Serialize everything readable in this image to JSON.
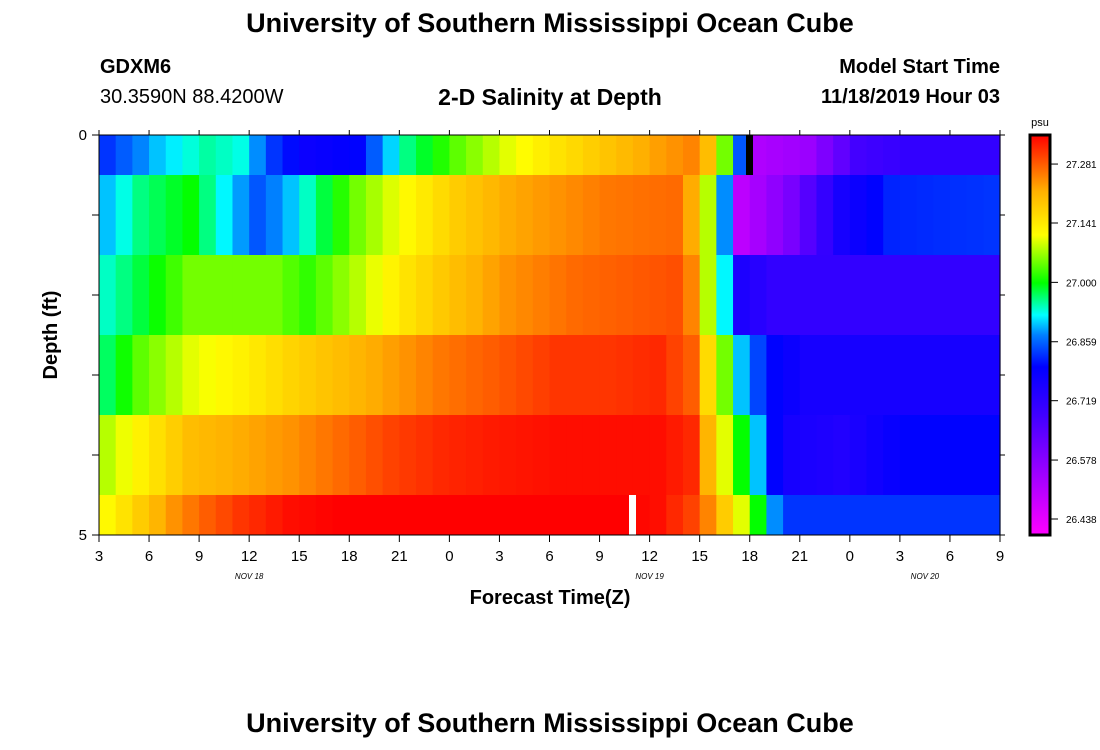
{
  "header": {
    "title": "University of Southern Mississippi Ocean Cube",
    "station": "GDXM6",
    "coordinates": "30.3590N 88.4200W",
    "subtitle": "2-D Salinity at Depth",
    "model_start_label": "Model Start Time",
    "model_start_value": "11/18/2019 Hour 03"
  },
  "footer": {
    "title": "University of Southern Mississippi Ocean Cube"
  },
  "chart_data": {
    "type": "heatmap",
    "title": "2-D Salinity at Depth",
    "xlabel": "Forecast Time(Z)",
    "ylabel": "Depth (ft)",
    "x_tick_labels": [
      "3",
      "6",
      "9",
      "12",
      "15",
      "18",
      "21",
      "0",
      "3",
      "6",
      "9",
      "12",
      "15",
      "18",
      "21",
      "0",
      "3",
      "6",
      "9"
    ],
    "date_labels": [
      "NOV 18",
      "NOV 19",
      "NOV 20"
    ],
    "y_tick_labels": [
      "0",
      "5"
    ],
    "ylim": [
      0,
      5
    ],
    "n_columns": 54,
    "rows": 6,
    "colorbar": {
      "unit": "psu",
      "tick_labels": [
        "27.281",
        "27.141",
        "27.000",
        "26.859",
        "26.719",
        "26.578",
        "26.438"
      ],
      "tick_values": [
        27.281,
        27.141,
        27.0,
        26.859,
        26.719,
        26.578,
        26.438
      ],
      "vmin": 26.4,
      "vmax": 27.35
    },
    "salinity_keyframes": [
      [
        [
          0,
          26.83
        ],
        [
          3,
          26.9
        ],
        [
          6,
          26.95
        ],
        [
          8,
          26.93
        ],
        [
          10,
          26.83
        ],
        [
          12,
          26.78
        ],
        [
          15,
          26.8
        ],
        [
          18,
          26.96
        ],
        [
          21,
          27.04
        ],
        [
          24,
          27.1
        ],
        [
          27,
          27.15
        ],
        [
          30,
          27.19
        ],
        [
          33,
          27.23
        ],
        [
          35,
          27.25
        ],
        [
          36,
          27.2
        ],
        [
          37,
          27.05
        ],
        [
          38,
          26.85
        ],
        [
          39,
          26.52
        ],
        [
          42,
          26.55
        ],
        [
          45,
          26.68
        ],
        [
          48,
          26.71
        ],
        [
          53,
          26.71
        ]
      ],
      [
        [
          0,
          26.9
        ],
        [
          2,
          26.96
        ],
        [
          5,
          27.0
        ],
        [
          7,
          26.92
        ],
        [
          9,
          26.85
        ],
        [
          11,
          26.9
        ],
        [
          13,
          26.98
        ],
        [
          15,
          27.05
        ],
        [
          18,
          27.12
        ],
        [
          21,
          27.18
        ],
        [
          24,
          27.22
        ],
        [
          27,
          27.24
        ],
        [
          30,
          27.26
        ],
        [
          34,
          27.27
        ],
        [
          35,
          27.22
        ],
        [
          36,
          27.08
        ],
        [
          37,
          26.88
        ],
        [
          38,
          26.5
        ],
        [
          41,
          26.6
        ],
        [
          44,
          26.76
        ],
        [
          47,
          26.82
        ],
        [
          53,
          26.83
        ]
      ],
      [
        [
          0,
          26.94
        ],
        [
          2,
          26.98
        ],
        [
          5,
          27.05
        ],
        [
          10,
          27.05
        ],
        [
          12,
          27.02
        ],
        [
          15,
          27.08
        ],
        [
          18,
          27.15
        ],
        [
          21,
          27.2
        ],
        [
          24,
          27.24
        ],
        [
          28,
          27.27
        ],
        [
          31,
          27.28
        ],
        [
          34,
          27.29
        ],
        [
          35,
          27.25
        ],
        [
          36,
          27.08
        ],
        [
          37,
          26.92
        ],
        [
          38,
          26.75
        ],
        [
          40,
          26.71
        ],
        [
          45,
          26.71
        ],
        [
          53,
          26.71
        ]
      ],
      [
        [
          0,
          26.97
        ],
        [
          2,
          27.04
        ],
        [
          5,
          27.1
        ],
        [
          8,
          27.13
        ],
        [
          11,
          27.17
        ],
        [
          14,
          27.2
        ],
        [
          17,
          27.23
        ],
        [
          20,
          27.26
        ],
        [
          23,
          27.28
        ],
        [
          27,
          27.31
        ],
        [
          30,
          27.31
        ],
        [
          33,
          27.32
        ],
        [
          35,
          27.28
        ],
        [
          36,
          27.16
        ],
        [
          37,
          27.05
        ],
        [
          38,
          26.9
        ],
        [
          39,
          26.84
        ],
        [
          40,
          26.8
        ],
        [
          41,
          26.78
        ],
        [
          42,
          26.76
        ],
        [
          53,
          26.76
        ]
      ],
      [
        [
          0,
          27.08
        ],
        [
          2,
          27.13
        ],
        [
          5,
          27.2
        ],
        [
          8,
          27.22
        ],
        [
          11,
          27.24
        ],
        [
          14,
          27.27
        ],
        [
          17,
          27.3
        ],
        [
          20,
          27.32
        ],
        [
          23,
          27.33
        ],
        [
          27,
          27.34
        ],
        [
          30,
          27.34
        ],
        [
          33,
          27.34
        ],
        [
          35,
          27.32
        ],
        [
          36,
          27.21
        ],
        [
          37,
          27.1
        ],
        [
          38,
          27.0
        ],
        [
          39,
          26.9
        ],
        [
          40,
          26.8
        ],
        [
          41,
          26.76
        ],
        [
          44,
          26.74
        ],
        [
          48,
          26.8
        ],
        [
          53,
          26.8
        ]
      ],
      [
        [
          0,
          27.12
        ],
        [
          2,
          27.18
        ],
        [
          4,
          27.24
        ],
        [
          6,
          27.28
        ],
        [
          8,
          27.31
        ],
        [
          11,
          27.34
        ],
        [
          14,
          27.35
        ],
        [
          18,
          27.35
        ],
        [
          23,
          27.35
        ],
        [
          27,
          27.35
        ],
        [
          31,
          27.35
        ],
        [
          33,
          27.34
        ],
        [
          35,
          27.3
        ],
        [
          36,
          27.25
        ],
        [
          37,
          27.18
        ],
        [
          38,
          27.1
        ],
        [
          39,
          27.0
        ],
        [
          40,
          26.88
        ],
        [
          41,
          26.83
        ],
        [
          44,
          26.83
        ],
        [
          53,
          26.83
        ]
      ]
    ]
  }
}
